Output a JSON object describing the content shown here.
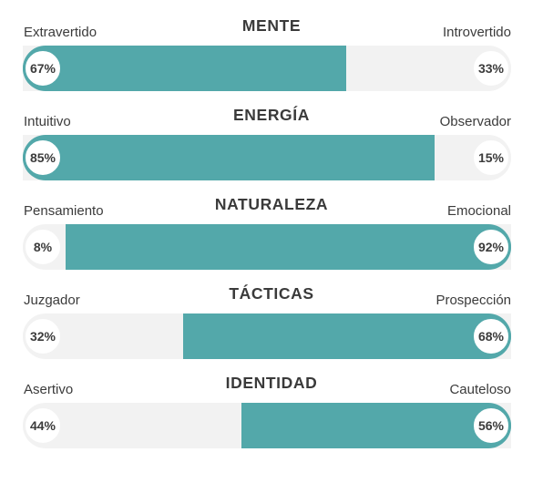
{
  "chart_data": {
    "type": "bar",
    "traits": [
      {
        "title": "MENTE",
        "left_label": "Extravertido",
        "right_label": "Introvertido",
        "left_value": 67,
        "right_value": 33,
        "dominant": "left",
        "left_pct": "67%",
        "right_pct": "33%"
      },
      {
        "title": "ENERGÍA",
        "left_label": "Intuitivo",
        "right_label": "Observador",
        "left_value": 85,
        "right_value": 15,
        "dominant": "left",
        "left_pct": "85%",
        "right_pct": "15%"
      },
      {
        "title": "NATURALEZA",
        "left_label": "Pensamiento",
        "right_label": "Emocional",
        "left_value": 8,
        "right_value": 92,
        "dominant": "right",
        "left_pct": "8%",
        "right_pct": "92%"
      },
      {
        "title": "TÁCTICAS",
        "left_label": "Juzgador",
        "right_label": "Prospección",
        "left_value": 32,
        "right_value": 68,
        "dominant": "right",
        "left_pct": "32%",
        "right_pct": "68%"
      },
      {
        "title": "IDENTIDAD",
        "left_label": "Asertivo",
        "right_label": "Cauteloso",
        "left_value": 44,
        "right_value": 56,
        "dominant": "right",
        "left_pct": "44%",
        "right_pct": "56%"
      }
    ],
    "colors": {
      "fill": "#53a8aa",
      "track": "#f2f2f2",
      "text": "#3b3b3b"
    }
  }
}
